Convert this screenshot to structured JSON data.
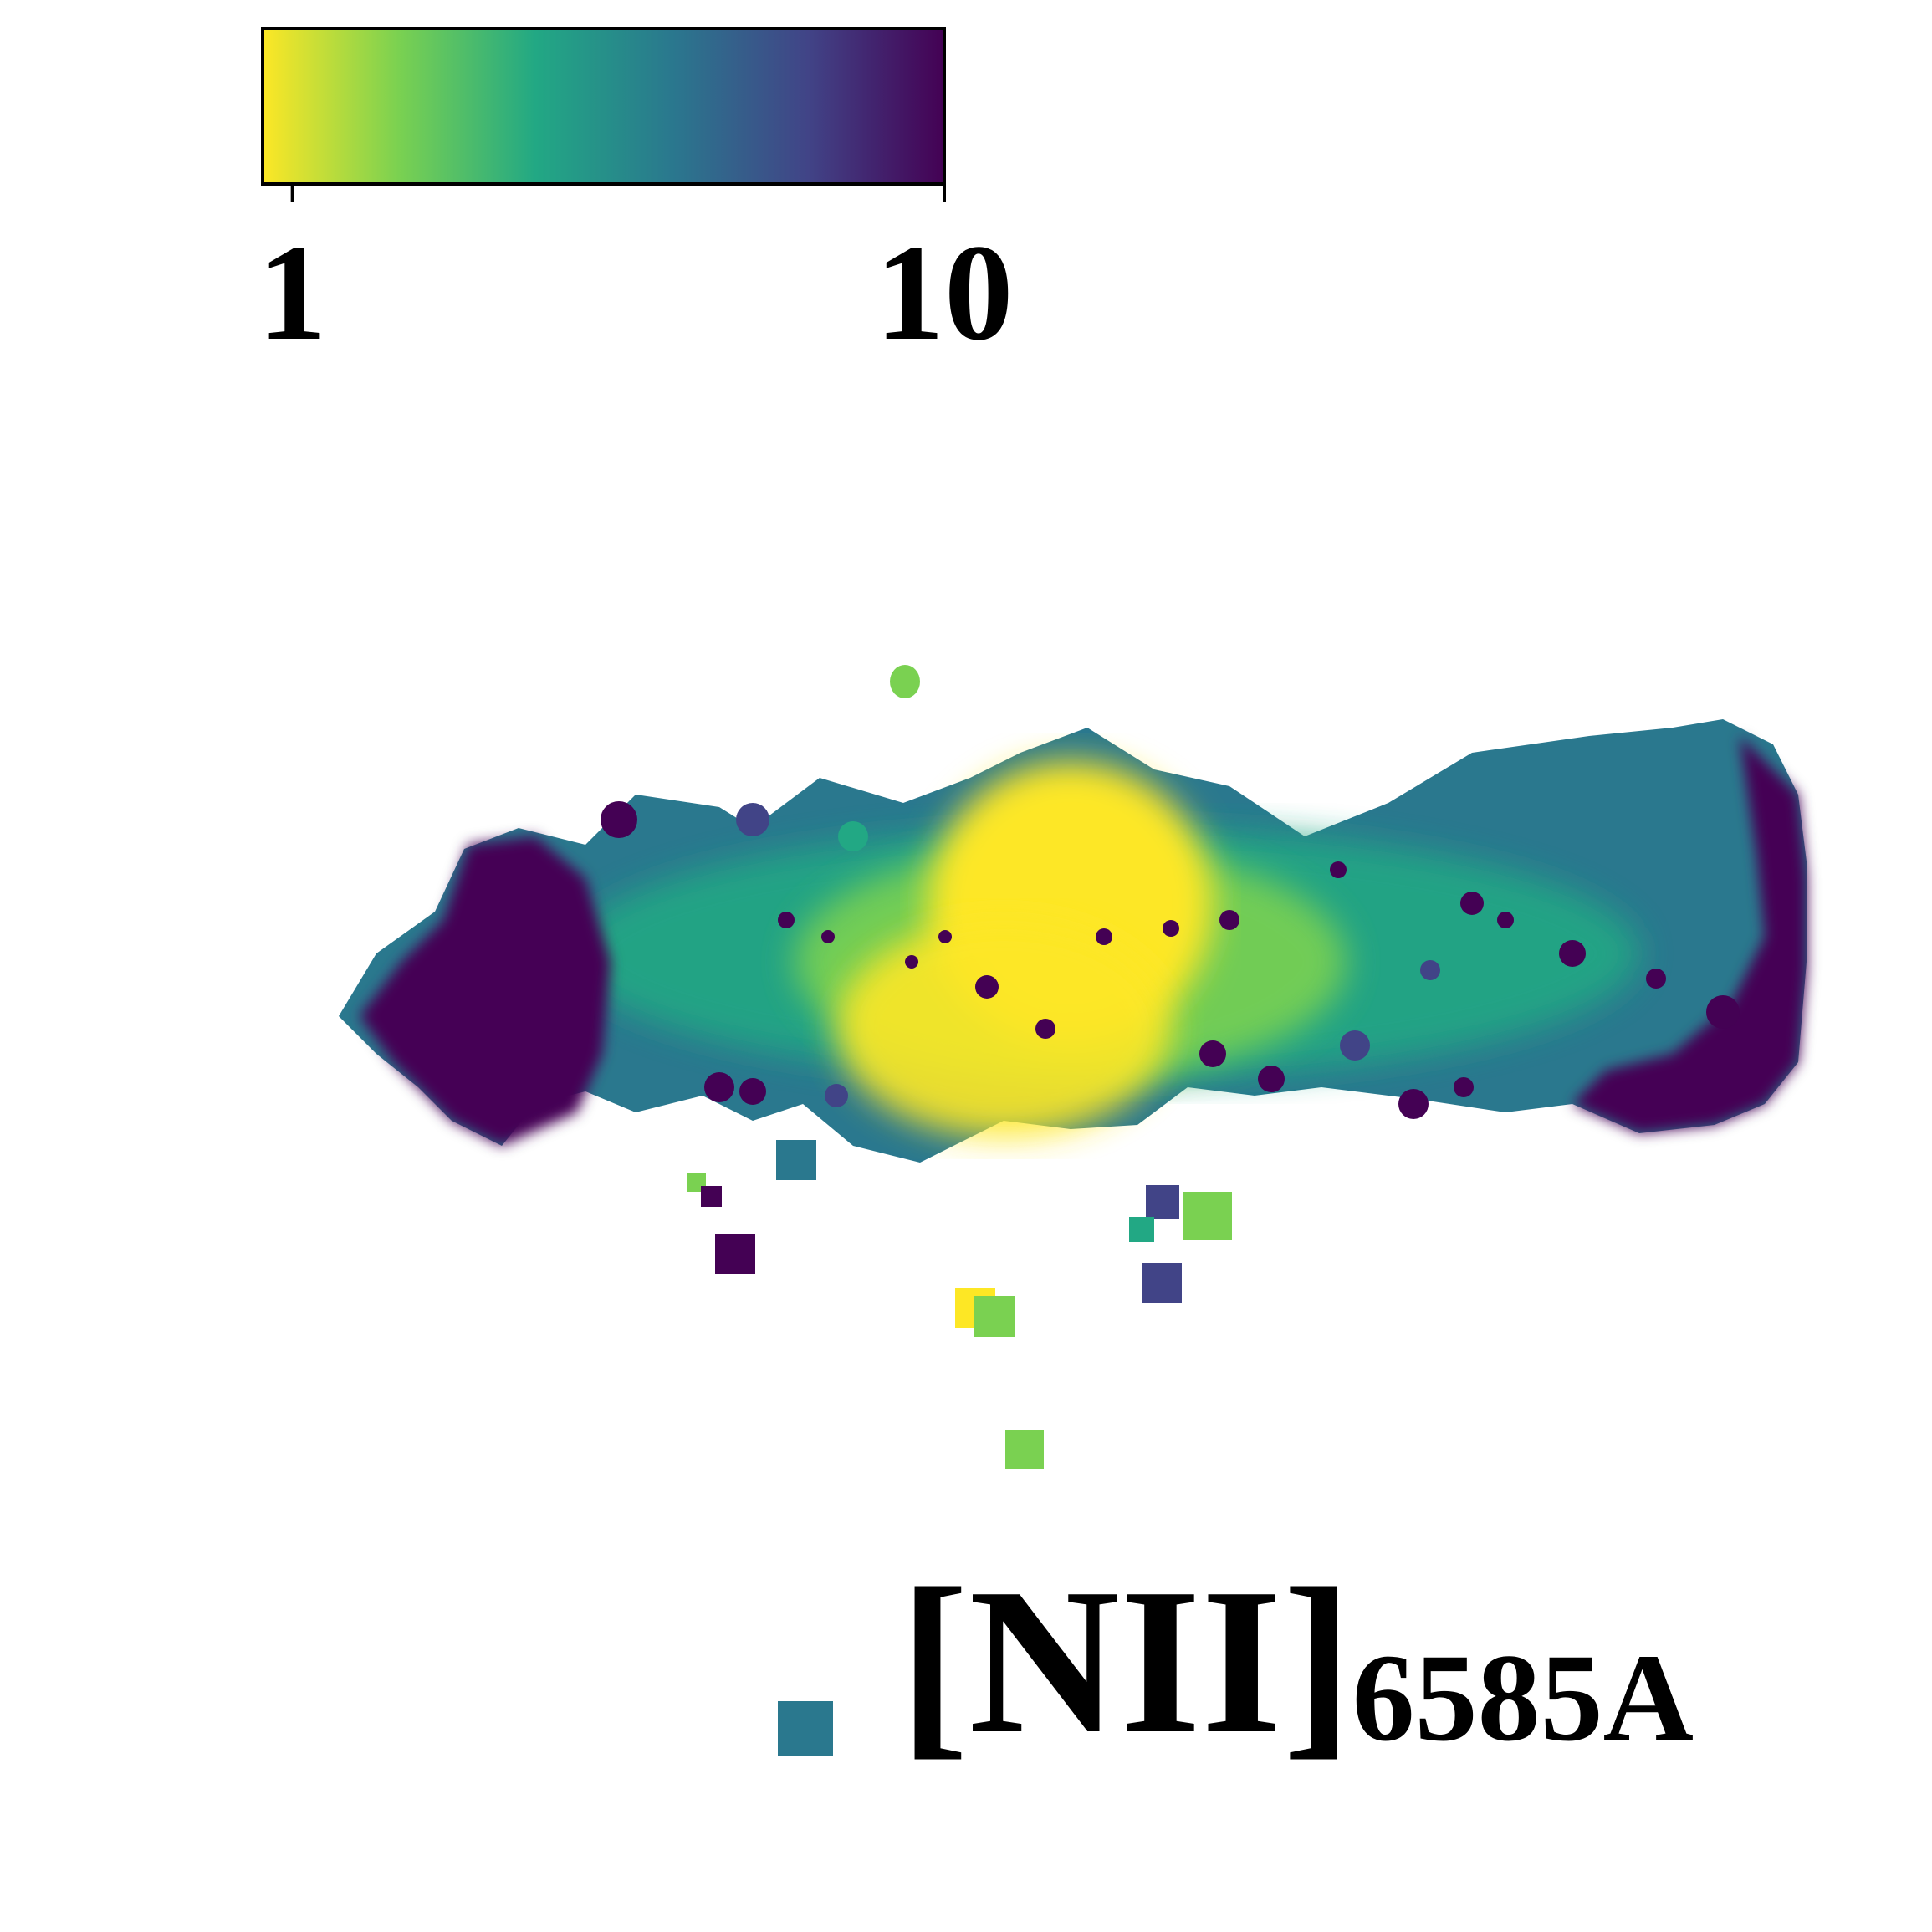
{
  "chart_data": {
    "type": "heatmap",
    "title": "",
    "colorscale": "viridis_r",
    "colorbar": {
      "scale": "log",
      "range": [
        0.9,
        10
      ],
      "ticks": [
        {
          "value": 1,
          "label": "1"
        },
        {
          "value": 10,
          "label": "10"
        }
      ],
      "orientation": "horizontal",
      "placement": "top-left",
      "colors": [
        "#fde725",
        "#7ad151",
        "#22a884",
        "#2a788e",
        "#414487",
        "#440154"
      ]
    },
    "annotation": {
      "main": "[NII]",
      "subscript": "6585A"
    },
    "map": {
      "description_regions": [
        {
          "region": "core",
          "value_level": "low",
          "color": "#fde725"
        },
        {
          "region": "inner-disk",
          "value_level": "mid-low",
          "color": "#7ad151"
        },
        {
          "region": "disk",
          "value_level": "mid",
          "color": "#22a884"
        },
        {
          "region": "outer-disk",
          "value_level": "mid-high",
          "color": "#2a788e"
        },
        {
          "region": "edges",
          "value_level": "high",
          "color": "#440154"
        }
      ]
    }
  }
}
